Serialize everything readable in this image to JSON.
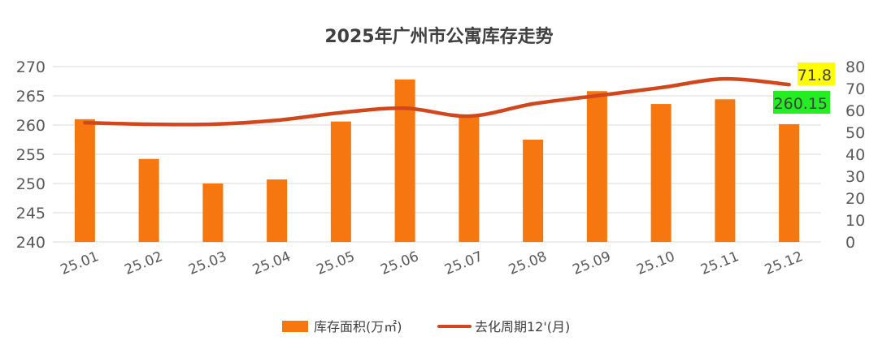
{
  "chart_data": {
    "type": "bar",
    "title": "2025年广州市公寓库存走势",
    "categories": [
      "25.01",
      "25.02",
      "25.03",
      "25.04",
      "25.05",
      "25.06",
      "25.07",
      "25.08",
      "25.09",
      "25.10",
      "25.11",
      "25.12"
    ],
    "series": [
      {
        "name": "库存面积(万㎡)",
        "type": "bar",
        "axis": "left",
        "color": "#f6760f",
        "values": [
          261.0,
          254.2,
          250.0,
          250.7,
          260.6,
          267.8,
          261.5,
          257.5,
          265.8,
          263.6,
          264.4,
          260.15
        ]
      },
      {
        "name": "去化周期12'(月)",
        "type": "line",
        "axis": "right",
        "color": "#d2461c",
        "values": [
          54.4,
          53.7,
          53.7,
          55.5,
          59.0,
          61.0,
          57.4,
          63.0,
          66.7,
          70.4,
          74.4,
          71.8
        ]
      }
    ],
    "left_axis": {
      "ylim": [
        240,
        270
      ],
      "ticks": [
        "240",
        "245",
        "250",
        "255",
        "260",
        "265",
        "270"
      ]
    },
    "right_axis": {
      "ylim": [
        0,
        80
      ],
      "ticks": [
        "0",
        "10",
        "20",
        "30",
        "40",
        "50",
        "60",
        "70",
        "80"
      ]
    },
    "annotations": [
      {
        "text": "71.8",
        "series": "line",
        "category": "25.12",
        "bg": "#ffff00"
      },
      {
        "text": "260.15",
        "series": "bar",
        "category": "25.12",
        "bg": "#22ee22"
      }
    ],
    "grid": true,
    "legend": "bottom"
  }
}
